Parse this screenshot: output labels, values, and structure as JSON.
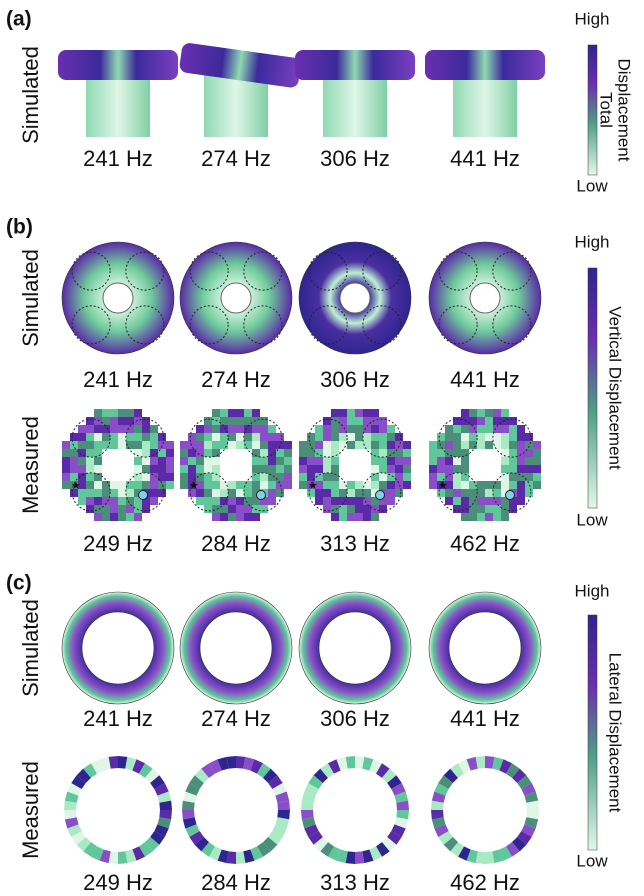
{
  "panels": [
    {
      "label": "(a)",
      "rows": [
        {
          "label": "Simulated",
          "frequencies": [
            "241 Hz",
            "274 Hz",
            "306 Hz",
            "441 Hz"
          ]
        }
      ],
      "colorbar": {
        "high": "High",
        "low": "Low",
        "title": [
          "Total",
          "Displacement"
        ]
      }
    },
    {
      "label": "(b)",
      "rows": [
        {
          "label": "Simulated",
          "frequencies": [
            "241 Hz",
            "274 Hz",
            "306 Hz",
            "441 Hz"
          ]
        },
        {
          "label": "Measured",
          "frequencies": [
            "249 Hz",
            "284 Hz",
            "313 Hz",
            "462 Hz"
          ]
        }
      ],
      "colorbar": {
        "high": "High",
        "low": "Low",
        "title": [
          "Vertical Displacement"
        ]
      }
    },
    {
      "label": "(c)",
      "rows": [
        {
          "label": "Simulated",
          "frequencies": [
            "241 Hz",
            "274 Hz",
            "306 Hz",
            "441 Hz"
          ]
        },
        {
          "label": "Measured",
          "frequencies": [
            "249 Hz",
            "284 Hz",
            "313 Hz",
            "462 Hz"
          ]
        }
      ],
      "colorbar": {
        "high": "High",
        "low": "Low",
        "title": [
          "Lateral Displacement"
        ]
      }
    }
  ]
}
